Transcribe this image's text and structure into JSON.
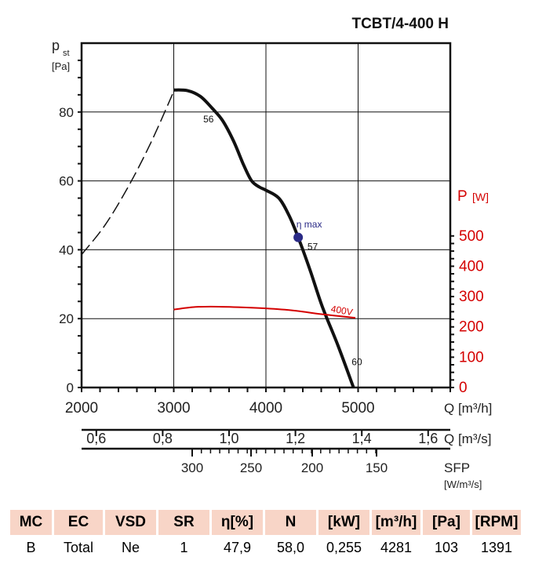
{
  "chart_data": {
    "type": "line",
    "title": "TCBT/4-400 H",
    "ylabel_left": "p",
    "ylabel_left_sub": "st",
    "ylabel_left_unit": "[Pa]",
    "ylabel_right": "P",
    "ylabel_right_unit": "[W]",
    "xlabel": "Q [m³/h]",
    "xlabel2": "Q [m³/s]",
    "xlabel3": "SFP",
    "xlabel3_unit": "[W/m³/s]",
    "xlim": [
      2000,
      6000
    ],
    "ylim_left": [
      0,
      100
    ],
    "ylim_right": [
      0,
      1136
    ],
    "x_ticks": [
      2000,
      3000,
      4000,
      5000
    ],
    "y_left_ticks": [
      0,
      20,
      40,
      60,
      80
    ],
    "y_right_ticks": [
      0,
      100,
      200,
      300,
      400,
      500
    ],
    "x2_ticks": [
      "0,6",
      "0,8",
      "1,0",
      "1,2",
      "1,4",
      "1,6"
    ],
    "x3_ticks": [
      "300",
      "250",
      "200",
      "150"
    ],
    "grid": true,
    "colors": {
      "pressure": "#111111",
      "power": "#d40000",
      "eta": "#2a2a86",
      "right_axis": "#d40000",
      "table_header": "#f8d5c7"
    },
    "series": [
      {
        "name": "",
        "kind": "pressure-unstable",
        "dashed": true,
        "x": [
          2000,
          2250,
          2500,
          2750,
          3000
        ],
        "y": [
          38.6,
          47,
          58,
          71,
          86
        ]
      },
      {
        "name": "",
        "kind": "pressure",
        "x": [
          3000,
          3150,
          3290,
          3420,
          3530,
          3650,
          3760,
          3845,
          3930,
          4000,
          4140,
          4250,
          4350,
          4480,
          4610,
          4780,
          4950
        ],
        "y": [
          86.4,
          86.2,
          84.5,
          81,
          77.5,
          71.5,
          64.5,
          60,
          58.2,
          57.3,
          55,
          50,
          43.6,
          34,
          23.6,
          12.3,
          0
        ]
      },
      {
        "name": "400V",
        "kind": "power",
        "axis": "right",
        "x": [
          3000,
          3200,
          3400,
          3700,
          4000,
          4300,
          4600,
          4970
        ],
        "y": [
          257,
          265,
          267,
          265,
          261,
          254,
          242,
          230
        ]
      }
    ],
    "annotations": [
      {
        "text": "56",
        "x": 3320,
        "y": 77
      },
      {
        "text": "57",
        "x": 4450,
        "y": 40
      },
      {
        "text": "60",
        "x": 4930,
        "y": 6.5
      },
      {
        "text": "η max",
        "x": 4330,
        "y": 46.5
      }
    ],
    "eta_max_point": {
      "x": 4350,
      "y": 43.6
    }
  },
  "table": {
    "headers": [
      "MC",
      "EC",
      "VSD",
      "SR",
      "η[%]",
      "N",
      "[kW]",
      "[m³/h]",
      "[Pa]",
      "[RPM]"
    ],
    "values": [
      "B",
      "Total",
      "Ne",
      "1",
      "47,9",
      "58,0",
      "0,255",
      "4281",
      "103",
      "1391"
    ]
  }
}
